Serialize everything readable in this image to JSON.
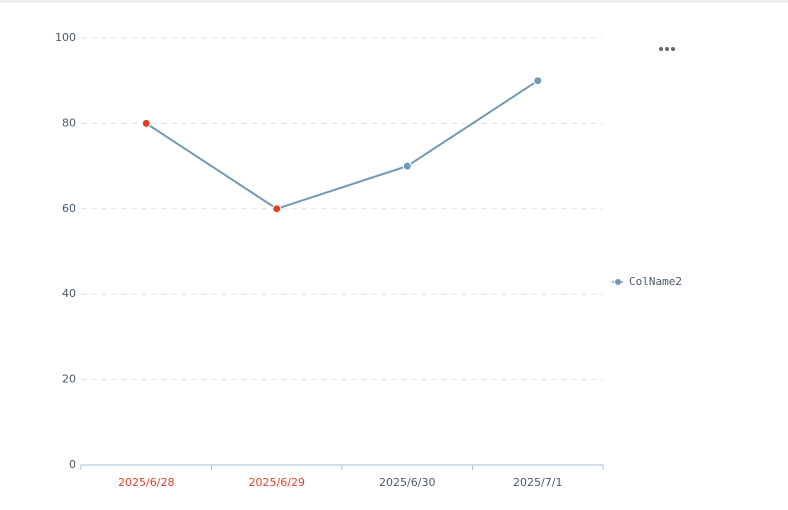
{
  "chart_data": {
    "type": "line",
    "categories": [
      "2025/6/28",
      "2025/6/29",
      "2025/6/30",
      "2025/7/1"
    ],
    "series": [
      {
        "name": "ColName2",
        "color": "#6f9ab5",
        "values": [
          80,
          60,
          70,
          90
        ],
        "point_colors": [
          "#e0412b",
          "#e0412b",
          "#6f9ab5",
          "#6f9ab5"
        ]
      }
    ],
    "category_label_colors": [
      "#e0412b",
      "#e0412b",
      "#4a5a6a",
      "#4a5a6a"
    ],
    "ylim": [
      0,
      100
    ],
    "yticks": [
      0,
      20,
      40,
      60,
      80,
      100
    ],
    "grid": true,
    "legend": "right"
  }
}
